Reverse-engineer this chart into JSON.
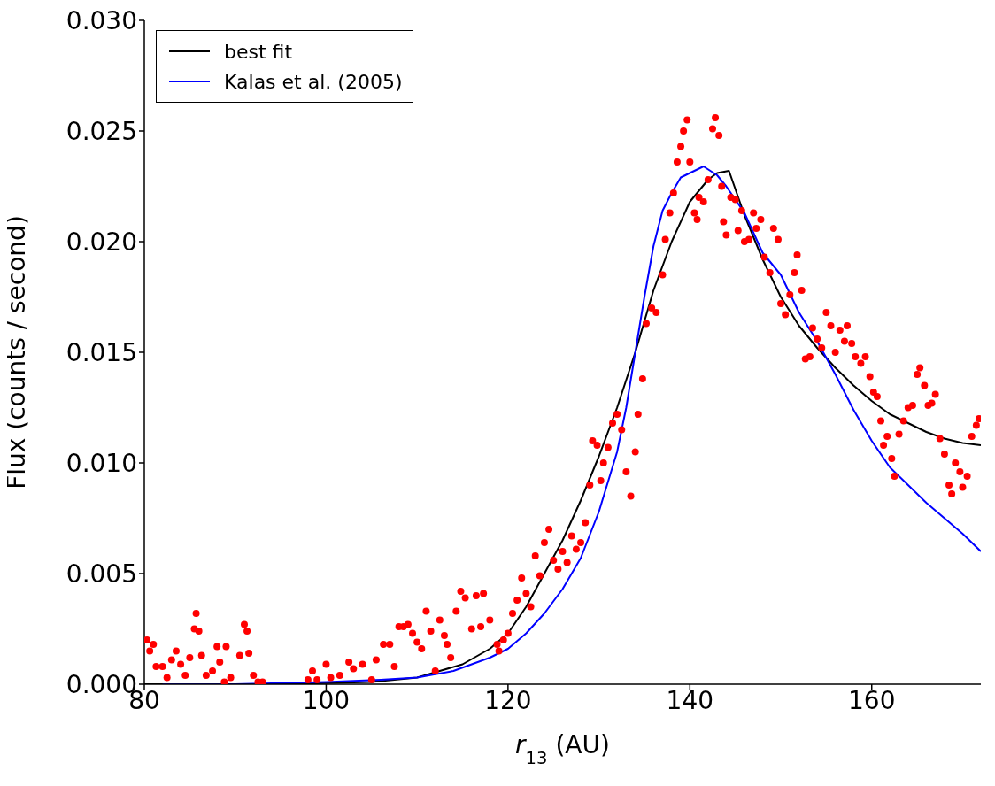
{
  "chart_data": {
    "type": "scatter",
    "xlabel": "r$_{13}$ (AU)",
    "ylabel": "Flux (counts / second)",
    "xlim": [
      80,
      172
    ],
    "xticks": [
      80,
      100,
      120,
      140,
      160
    ],
    "ylim": [
      0,
      0.03
    ],
    "yticks": [
      {
        "value": 0,
        "label": "0.000"
      },
      {
        "value": 0.005,
        "label": "0.005"
      },
      {
        "value": 0.01,
        "label": "0.010"
      },
      {
        "value": 0.015,
        "label": "0.015"
      },
      {
        "value": 0.02,
        "label": "0.020"
      },
      {
        "value": 0.025,
        "label": "0.025"
      },
      {
        "value": 0.03,
        "label": "0.030"
      }
    ],
    "grid": false,
    "legend": "top left",
    "series": [
      {
        "type": "scatter",
        "color": "#ff0000",
        "marker": "circle",
        "x": [
          80.3,
          80.6,
          81,
          81.3,
          82,
          82.5,
          83,
          83.5,
          84,
          84.5,
          85,
          85.5,
          85.7,
          86,
          86.3,
          86.8,
          87.5,
          88,
          88.3,
          88.8,
          89,
          89.5,
          90.5,
          91,
          91.3,
          91.5,
          92,
          92.5,
          93,
          98,
          98.5,
          99,
          100,
          100.5,
          101.5,
          102.5,
          103,
          104,
          105,
          105.5,
          106.3,
          107,
          107.5,
          108,
          108.5,
          109,
          109.5,
          110,
          110.5,
          111,
          111.5,
          112,
          112.5,
          113,
          113.3,
          113.7,
          114.3,
          114.8,
          115.3,
          116,
          116.5,
          117,
          117.3,
          118,
          118.8,
          119,
          119.5,
          120,
          120.5,
          121,
          121.5,
          122,
          122.5,
          123,
          123.5,
          124,
          124.5,
          125,
          125.5,
          126,
          126.5,
          127,
          127.5,
          128,
          128.5,
          129,
          129.3,
          129.8,
          130.2,
          130.5,
          131,
          131.5,
          132,
          132.5,
          133,
          133.5,
          134,
          134.3,
          134.8,
          135.2,
          135.8,
          136.3,
          137,
          137.3,
          137.8,
          138.2,
          138.6,
          139,
          139.3,
          139.7,
          140,
          140.5,
          140.8,
          141,
          141.5,
          142,
          142.5,
          142.8,
          143.2,
          143.5,
          143.7,
          144,
          144.5,
          145,
          145.3,
          145.7,
          146,
          146.5,
          147,
          147.3,
          147.8,
          148.2,
          148.8,
          149.2,
          149.7,
          150,
          150.5,
          151,
          151.5,
          151.8,
          152.3,
          152.7,
          153.2,
          153.5,
          154,
          154.5,
          155,
          155.5,
          156,
          156.5,
          157,
          157.3,
          157.8,
          158.2,
          158.8,
          159.3,
          159.8,
          160.2,
          160.6,
          161,
          161.3,
          161.7,
          162.2,
          162.5,
          163,
          163.5,
          164,
          164.5,
          165,
          165.3,
          165.8,
          166.2,
          166.6,
          167,
          167.5,
          168,
          168.5,
          168.8,
          169.2,
          169.7,
          170,
          170.5,
          171,
          171.5,
          171.8
        ],
        "values": [
          0.002,
          0.0015,
          0.0018,
          0.0008,
          0.0008,
          0.0003,
          0.0011,
          0.0015,
          0.0009,
          0.0004,
          0.0012,
          0.0025,
          0.0032,
          0.0024,
          0.0013,
          0.0004,
          0.0006,
          0.0017,
          0.001,
          0.0001,
          0.0017,
          0.0003,
          0.0013,
          0.0027,
          0.0024,
          0.0014,
          0.0004,
          0.0001,
          0.0001,
          0.0002,
          0.0006,
          0.0002,
          0.0009,
          0.0003,
          0.0004,
          0.001,
          0.0007,
          0.0009,
          0.0002,
          0.0011,
          0.0018,
          0.0018,
          0.0008,
          0.0026,
          0.0026,
          0.0027,
          0.0023,
          0.0019,
          0.0016,
          0.0033,
          0.0024,
          0.0006,
          0.0029,
          0.0022,
          0.0018,
          0.0012,
          0.0033,
          0.0042,
          0.0039,
          0.0025,
          0.004,
          0.0026,
          0.0041,
          0.0029,
          0.0018,
          0.0015,
          0.002,
          0.0023,
          0.0032,
          0.0038,
          0.0048,
          0.0041,
          0.0035,
          0.0058,
          0.0049,
          0.0064,
          0.007,
          0.0056,
          0.0052,
          0.006,
          0.0055,
          0.0067,
          0.0061,
          0.0064,
          0.0073,
          0.009,
          0.011,
          0.0108,
          0.0092,
          0.01,
          0.0107,
          0.0118,
          0.0122,
          0.0115,
          0.0096,
          0.0085,
          0.0105,
          0.0122,
          0.0138,
          0.0163,
          0.017,
          0.0168,
          0.0185,
          0.0201,
          0.0213,
          0.0222,
          0.0236,
          0.0243,
          0.025,
          0.0255,
          0.0236,
          0.0213,
          0.021,
          0.022,
          0.0218,
          0.0228,
          0.0251,
          0.0256,
          0.0248,
          0.0225,
          0.0209,
          0.0203,
          0.022,
          0.0219,
          0.0205,
          0.0214,
          0.02,
          0.0201,
          0.0213,
          0.0206,
          0.021,
          0.0193,
          0.0186,
          0.0206,
          0.0201,
          0.0172,
          0.0167,
          0.0176,
          0.0186,
          0.0194,
          0.0178,
          0.0147,
          0.0148,
          0.0161,
          0.0156,
          0.0152,
          0.0168,
          0.0162,
          0.015,
          0.016,
          0.0155,
          0.0162,
          0.0154,
          0.0148,
          0.0145,
          0.0148,
          0.0139,
          0.0132,
          0.013,
          0.0119,
          0.0108,
          0.0112,
          0.0102,
          0.0094,
          0.0113,
          0.0119,
          0.0125,
          0.0126,
          0.014,
          0.0143,
          0.0135,
          0.0126,
          0.0127,
          0.0131,
          0.0111,
          0.0104,
          0.009,
          0.0086,
          0.01,
          0.0096,
          0.0089,
          0.0094,
          0.0112,
          0.0117,
          0.012
        ]
      },
      {
        "type": "line",
        "name": "best fit",
        "color": "#000000",
        "marker": "none",
        "x": [
          80,
          95,
          105,
          110,
          115,
          118,
          120,
          122,
          124,
          126,
          128,
          130,
          132,
          134,
          136,
          138,
          140,
          142,
          143,
          144.3,
          146,
          148,
          150,
          152,
          154,
          156,
          158,
          160,
          162,
          164,
          166,
          168,
          170,
          172
        ],
        "values": [
          0,
          0,
          0.0001,
          0.0003,
          0.0009,
          0.0016,
          0.0023,
          0.0035,
          0.005,
          0.0065,
          0.0083,
          0.0103,
          0.0125,
          0.015,
          0.0178,
          0.02,
          0.0218,
          0.0228,
          0.0231,
          0.0232,
          0.0212,
          0.0192,
          0.0175,
          0.0162,
          0.0152,
          0.0143,
          0.0135,
          0.0128,
          0.0122,
          0.0118,
          0.0114,
          0.0111,
          0.0109,
          0.0108
        ]
      },
      {
        "type": "line",
        "name": "Kalas et al. (2005)",
        "color": "#0000ff",
        "marker": "none",
        "x": [
          82,
          90,
          100,
          106,
          110,
          114,
          118,
          120,
          122,
          124,
          126,
          128,
          130,
          132,
          133,
          134,
          135,
          136,
          137,
          138,
          139,
          140,
          141.5,
          143,
          144,
          146,
          148,
          150,
          152,
          154,
          156,
          158,
          160,
          162,
          164,
          166,
          168,
          170,
          172
        ],
        "values": [
          0,
          0,
          0.0001,
          0.0002,
          0.0003,
          0.0006,
          0.0012,
          0.0016,
          0.0023,
          0.0032,
          0.0043,
          0.0057,
          0.0078,
          0.0105,
          0.0125,
          0.015,
          0.0175,
          0.0198,
          0.0214,
          0.0222,
          0.0229,
          0.0231,
          0.0234,
          0.023,
          0.0225,
          0.0213,
          0.0195,
          0.0185,
          0.0168,
          0.0155,
          0.014,
          0.0124,
          0.011,
          0.0098,
          0.009,
          0.0082,
          0.0075,
          0.0068,
          0.006
        ]
      }
    ]
  }
}
